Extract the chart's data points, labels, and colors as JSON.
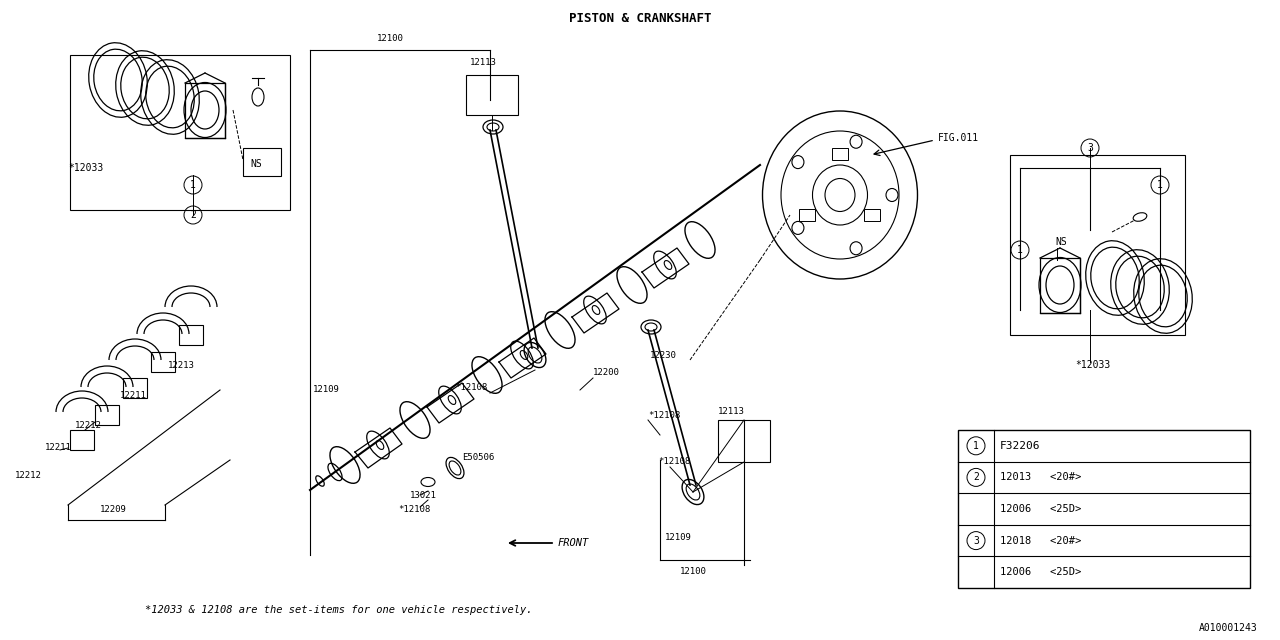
{
  "title": "PISTON & CRANKSHAFT",
  "bg_color": "#FFFFFF",
  "line_color": "#000000",
  "fig_width": 12.8,
  "fig_height": 6.4,
  "footer_text": "*12033 & 12108 are the set-items for one vehicle respectively.",
  "doc_id": "A010001243",
  "table": {
    "circle1": "F32206",
    "circle2_row1": "12013   <20#>",
    "circle2_row2": "12006   <25D>",
    "circle3_row1": "12018   <20#>",
    "circle3_row2": "12006   <25D>"
  }
}
